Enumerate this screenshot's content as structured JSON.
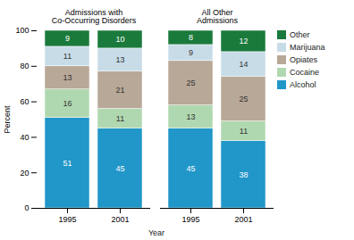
{
  "chart_data": {
    "type": "bar",
    "stacked": true,
    "categories": [
      "1995",
      "2001",
      "1995",
      "2001"
    ],
    "groups": [
      {
        "label": "Admissions with\nCo-Occurring Disorders",
        "categories": [
          0,
          1
        ]
      },
      {
        "label": "All Other\nAdmissions",
        "categories": [
          2,
          3
        ]
      }
    ],
    "series": [
      {
        "name": "Alcohol",
        "color": "#2196c8",
        "values": [
          51,
          45,
          45,
          38
        ]
      },
      {
        "name": "Cocaine",
        "color": "#b0d8b0",
        "values": [
          16,
          11,
          13,
          11
        ]
      },
      {
        "name": "Opiates",
        "color": "#b8a898",
        "values": [
          13,
          21,
          25,
          25
        ]
      },
      {
        "name": "Marijuana",
        "color": "#c8dce8",
        "values": [
          11,
          13,
          9,
          14
        ]
      },
      {
        "name": "Other",
        "color": "#1a7a3c",
        "values": [
          9,
          10,
          8,
          12
        ]
      }
    ],
    "xlabel": "Year",
    "ylabel": "Percent",
    "ylim": [
      0,
      100
    ],
    "yticks": [
      0,
      20,
      40,
      60,
      80,
      100
    ],
    "data_labels": true,
    "grid": false,
    "legend": "right"
  }
}
